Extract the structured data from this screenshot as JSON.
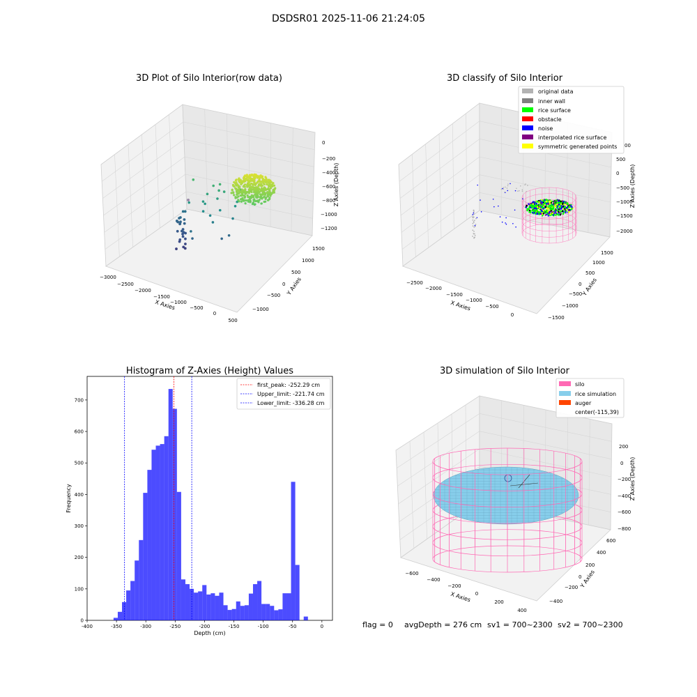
{
  "suptitle": "DSDSR01 2025-11-06 21:24:05",
  "colors": {
    "histogram_bar": "#0000ff",
    "first_peak_line": "#ff0000",
    "limit_lines": "#0000ff",
    "silo": "#ff69b4",
    "rice_simulation": "#87ceeb",
    "auger": "#ff4500",
    "original_data": "#b3b3b3",
    "inner_wall": "#808080",
    "rice_surface": "#00ff00",
    "obstacle": "#ff0000",
    "noise": "#0000ff",
    "interpolated_rice_surface": "#800080",
    "symmetric_generated_points": "#ffff00"
  },
  "chart_data": [
    {
      "type": "scatter",
      "subtype": "3d",
      "title": "3D Plot of Silo Interior(row data)",
      "xlabel": "X Axies",
      "ylabel": "Y Axies",
      "zlabel": "Z Axies (Depth)",
      "x_ticks": [
        "−3000",
        "−2500",
        "−2000",
        "−1500",
        "−1000",
        "−500",
        "0",
        "500"
      ],
      "y_ticks": [
        "−1000",
        "−500",
        "0",
        "500",
        "1000",
        "1500"
      ],
      "z_ticks": [
        "0",
        "−200",
        "−400",
        "−600",
        "−800",
        "−1000",
        "−1200"
      ],
      "colormap": "viridis"
    },
    {
      "type": "scatter",
      "subtype": "3d",
      "title": "3D classify of Silo Interior",
      "xlabel": "X Axies",
      "ylabel": "Y Axies",
      "zlabel": "Z Axies (Depth)",
      "x_ticks": [
        "−2500",
        "−2000",
        "−1500",
        "−1000",
        "−500",
        "0"
      ],
      "y_ticks": [
        "−1500",
        "−1000",
        "−500",
        "0",
        "500",
        "1000",
        "1500"
      ],
      "z_ticks": [
        "500",
        "0",
        "−500",
        "−1000",
        "−1500",
        "−2000"
      ],
      "z_ticks_partial": [
        "00"
      ],
      "legend": {
        "placement": "top-right",
        "entries": [
          {
            "label": "original data",
            "color": "#b3b3b3"
          },
          {
            "label": "inner wall",
            "color": "#808080"
          },
          {
            "label": "rice surface",
            "color": "#00ff00"
          },
          {
            "label": "obstacle",
            "color": "#ff0000"
          },
          {
            "label": "noise",
            "color": "#0000ff"
          },
          {
            "label": "interpolated rice surface",
            "color": "#800080"
          },
          {
            "label": "symmetric generated points",
            "color": "#ffff00"
          }
        ]
      }
    },
    {
      "type": "bar",
      "subtype": "histogram",
      "title": "Histogram of Z-Axies (Height) Values",
      "xlabel": "Depth (cm)",
      "ylabel": "Frequency",
      "xlim": [
        -400,
        18
      ],
      "ylim": [
        0,
        775
      ],
      "x_ticks": [
        -400,
        -350,
        -300,
        -250,
        -200,
        -150,
        -100,
        -50,
        0
      ],
      "y_ticks": [
        0,
        100,
        200,
        300,
        400,
        500,
        600,
        700
      ],
      "bin_start": -355,
      "bin_width": 7.2,
      "values": [
        8,
        27,
        58,
        95,
        125,
        190,
        255,
        405,
        478,
        542,
        555,
        560,
        585,
        735,
        672,
        408,
        130,
        115,
        100,
        88,
        92,
        112,
        82,
        86,
        78,
        88,
        48,
        33,
        36,
        60,
        46,
        48,
        85,
        115,
        125,
        52,
        52,
        46,
        32,
        35,
        86,
        86,
        440,
        176,
        0,
        12
      ],
      "vlines": [
        {
          "label": "first_peak: -252.29 cm",
          "x": -252.29,
          "color": "#ff0000"
        },
        {
          "label": "Upper_limit: -221.74 cm",
          "x": -221.74,
          "color": "#0000ff"
        },
        {
          "label": "Lower_limit: -336.28 cm",
          "x": -336.28,
          "color": "#0000ff"
        }
      ],
      "legend": {
        "placement": "top-right"
      }
    },
    {
      "type": "surface",
      "subtype": "3d",
      "title": "3D simulation of Silo Interior",
      "xlabel": "X Axies",
      "ylabel": "Y Axies",
      "zlabel": "Z Axies (Depth)",
      "x_ticks": [
        "−600",
        "−400",
        "−200",
        "0",
        "200",
        "400"
      ],
      "y_ticks": [
        "−400",
        "−200",
        "0",
        "200",
        "400",
        "600"
      ],
      "z_ticks": [
        "200",
        "0",
        "−200",
        "−400",
        "−600",
        "−800"
      ],
      "legend": {
        "placement": "top-right",
        "entries": [
          {
            "label": "silo",
            "color": "#ff69b4"
          },
          {
            "label": "rice simulation",
            "color": "#87ceeb"
          },
          {
            "label": "auger",
            "color": "#ff4500"
          },
          {
            "label": "center(-115,39)",
            "color": ""
          }
        ]
      }
    }
  ],
  "footer": {
    "flag": "flag = 0",
    "avg": "avgDepth = 276 cm",
    "sv1": "sv1 = 700~2300",
    "sv2": "sv2 = 700~2300"
  }
}
